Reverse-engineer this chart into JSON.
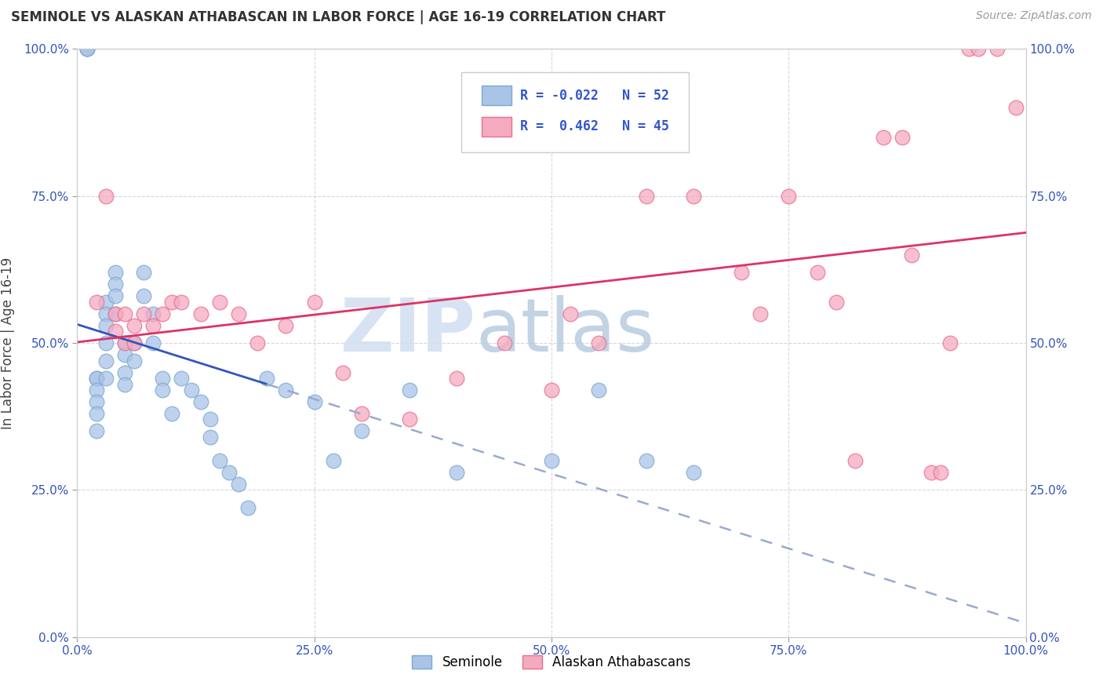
{
  "title": "SEMINOLE VS ALASKAN ATHABASCAN IN LABOR FORCE | AGE 16-19 CORRELATION CHART",
  "source_text": "Source: ZipAtlas.com",
  "ylabel": "In Labor Force | Age 16-19",
  "xlim": [
    0.0,
    1.0
  ],
  "ylim": [
    0.0,
    1.0
  ],
  "xtick_labels": [
    "0.0%",
    "25.0%",
    "50.0%",
    "75.0%",
    "100.0%"
  ],
  "xtick_vals": [
    0.0,
    0.25,
    0.5,
    0.75,
    1.0
  ],
  "ytick_labels": [
    "0.0%",
    "25.0%",
    "50.0%",
    "75.0%",
    "100.0%"
  ],
  "ytick_vals": [
    0.0,
    0.25,
    0.5,
    0.75,
    1.0
  ],
  "seminole_color": "#aac4e8",
  "athabascan_color": "#f5aabf",
  "seminole_edge": "#7aaad0",
  "athabascan_edge": "#e87090",
  "trend_blue": "#3355bb",
  "trend_pink": "#dd3366",
  "trend_dashed_color": "#99aace",
  "R_seminole": -0.022,
  "N_seminole": 52,
  "R_athabascan": 0.462,
  "N_athabascan": 45,
  "watermark_zip": "ZIP",
  "watermark_atlas": "atlas",
  "watermark_color_zip": "#c8d8ee",
  "watermark_color_atlas": "#b8cce8",
  "seminole_x": [
    0.01,
    0.01,
    0.01,
    0.02,
    0.02,
    0.02,
    0.02,
    0.02,
    0.02,
    0.03,
    0.03,
    0.03,
    0.03,
    0.03,
    0.03,
    0.04,
    0.04,
    0.04,
    0.04,
    0.05,
    0.05,
    0.05,
    0.05,
    0.06,
    0.06,
    0.07,
    0.07,
    0.08,
    0.08,
    0.09,
    0.09,
    0.1,
    0.11,
    0.12,
    0.13,
    0.14,
    0.14,
    0.15,
    0.16,
    0.17,
    0.18,
    0.2,
    0.22,
    0.25,
    0.27,
    0.3,
    0.35,
    0.4,
    0.5,
    0.55,
    0.6,
    0.65
  ],
  "seminole_y": [
    1.0,
    1.0,
    1.0,
    0.44,
    0.44,
    0.42,
    0.4,
    0.38,
    0.35,
    0.57,
    0.55,
    0.53,
    0.5,
    0.47,
    0.44,
    0.62,
    0.6,
    0.58,
    0.55,
    0.5,
    0.48,
    0.45,
    0.43,
    0.5,
    0.47,
    0.62,
    0.58,
    0.55,
    0.5,
    0.44,
    0.42,
    0.38,
    0.44,
    0.42,
    0.4,
    0.37,
    0.34,
    0.3,
    0.28,
    0.26,
    0.22,
    0.44,
    0.42,
    0.4,
    0.3,
    0.35,
    0.42,
    0.28,
    0.3,
    0.42,
    0.3,
    0.28
  ],
  "athabascan_x": [
    0.02,
    0.03,
    0.04,
    0.04,
    0.05,
    0.05,
    0.06,
    0.06,
    0.07,
    0.08,
    0.09,
    0.1,
    0.11,
    0.13,
    0.15,
    0.17,
    0.19,
    0.22,
    0.25,
    0.28,
    0.3,
    0.35,
    0.4,
    0.45,
    0.5,
    0.52,
    0.55,
    0.6,
    0.65,
    0.7,
    0.72,
    0.75,
    0.78,
    0.8,
    0.82,
    0.85,
    0.87,
    0.88,
    0.9,
    0.91,
    0.92,
    0.94,
    0.95,
    0.97,
    0.99
  ],
  "athabascan_y": [
    0.57,
    0.75,
    0.55,
    0.52,
    0.5,
    0.55,
    0.53,
    0.5,
    0.55,
    0.53,
    0.55,
    0.57,
    0.57,
    0.55,
    0.57,
    0.55,
    0.5,
    0.53,
    0.57,
    0.45,
    0.38,
    0.37,
    0.44,
    0.5,
    0.42,
    0.55,
    0.5,
    0.75,
    0.75,
    0.62,
    0.55,
    0.75,
    0.62,
    0.57,
    0.3,
    0.85,
    0.85,
    0.65,
    0.28,
    0.28,
    0.5,
    1.0,
    1.0,
    1.0,
    0.9
  ]
}
